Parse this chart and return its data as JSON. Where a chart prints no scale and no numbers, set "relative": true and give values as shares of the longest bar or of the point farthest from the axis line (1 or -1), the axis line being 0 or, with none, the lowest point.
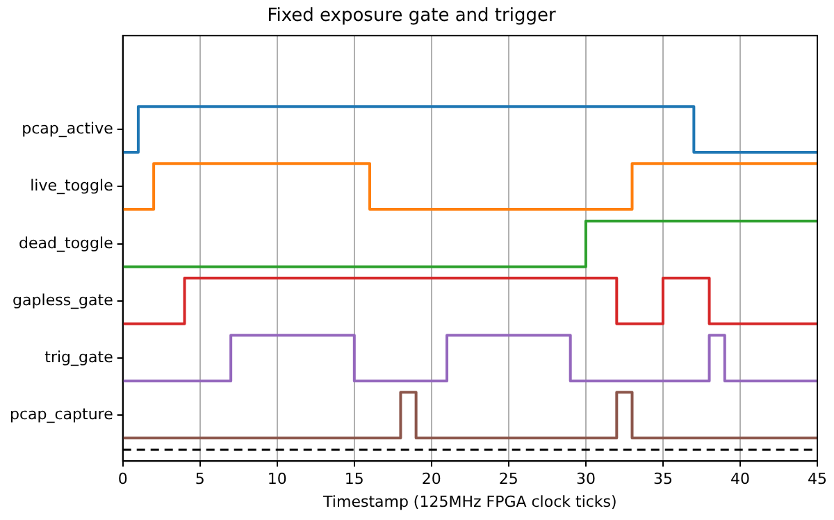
{
  "chart_data": {
    "type": "step",
    "title": "Fixed exposure gate and trigger",
    "xlabel": "Timestamp (125MHz FPGA clock ticks)",
    "xlim": [
      0,
      45
    ],
    "xticks": [
      0,
      5,
      10,
      15,
      20,
      25,
      30,
      35,
      40,
      45
    ],
    "relative": true,
    "grid": "x",
    "legend": false,
    "series": [
      {
        "name": "pcap_active",
        "color": "#1f77b4",
        "x": [
          0,
          1,
          37,
          45
        ],
        "values": [
          0.871,
          1,
          0.871,
          0.871
        ]
      },
      {
        "name": "live_toggle",
        "color": "#ff7f0e",
        "x": [
          0,
          2,
          16,
          33,
          45
        ],
        "values": [
          0.71,
          0.839,
          0.71,
          0.839,
          0.839
        ]
      },
      {
        "name": "dead_toggle",
        "color": "#2ca02c",
        "x": [
          0,
          30,
          45
        ],
        "values": [
          0.548,
          0.677,
          0.677
        ]
      },
      {
        "name": "gapless_gate",
        "color": "#d62728",
        "x": [
          0,
          4,
          32,
          35,
          38,
          45
        ],
        "values": [
          0.387,
          0.516,
          0.387,
          0.516,
          0.387,
          0.387
        ]
      },
      {
        "name": "trig_gate",
        "color": "#9467bd",
        "x": [
          0,
          7,
          15,
          21,
          29,
          38,
          39,
          45
        ],
        "values": [
          0.226,
          0.355,
          0.226,
          0.355,
          0.226,
          0.355,
          0.226,
          0.226
        ]
      },
      {
        "name": "pcap_capture",
        "color": "#8c564b",
        "x": [
          0,
          18,
          19,
          32,
          33,
          45
        ],
        "values": [
          0.065,
          0.194,
          0.065,
          0.194,
          0.065,
          0.065
        ]
      }
    ],
    "ref_lines": [
      {
        "axis": "y",
        "value": 0.032,
        "color": "#000000",
        "line_style": "dashed"
      }
    ]
  }
}
